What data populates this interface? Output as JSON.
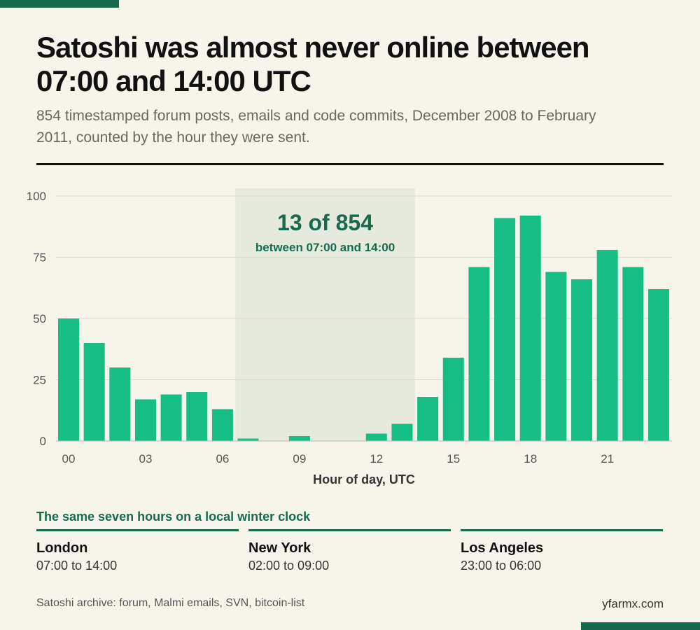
{
  "title": "Satoshi was almost never online between 07:00 and 14:00 UTC",
  "subtitle": "854 timestamped forum posts, emails and code commits, December 2008 to February 2011, counted by the hour they were sent.",
  "chart_data": {
    "type": "bar",
    "xlabel": "Hour of day, UTC",
    "ylabel": "",
    "ylim": [
      0,
      100
    ],
    "yticks": [
      0,
      25,
      50,
      75,
      100
    ],
    "categories": [
      "00",
      "01",
      "02",
      "03",
      "04",
      "05",
      "06",
      "07",
      "08",
      "09",
      "10",
      "11",
      "12",
      "13",
      "14",
      "15",
      "16",
      "17",
      "18",
      "19",
      "20",
      "21",
      "22",
      "23"
    ],
    "tick_labels": [
      "00",
      "03",
      "06",
      "09",
      "12",
      "15",
      "18",
      "21"
    ],
    "values": [
      50,
      40,
      30,
      17,
      19,
      20,
      13,
      1,
      0,
      2,
      0,
      0,
      3,
      7,
      18,
      34,
      71,
      91,
      92,
      69,
      66,
      78,
      71,
      62
    ],
    "grid": true,
    "bar_color": "#16bd84",
    "highlight": {
      "from_hour": 7,
      "to_hour": 14,
      "color": "#e6e9de",
      "count_label": "13 of 854",
      "range_label": "between 07:00 and 14:00"
    }
  },
  "cities": {
    "heading": "The same seven hours on a local winter clock",
    "items": [
      {
        "name": "London",
        "range": "07:00 to 14:00"
      },
      {
        "name": "New York",
        "range": "02:00 to 09:00"
      },
      {
        "name": "Los Angeles",
        "range": "23:00 to 06:00"
      }
    ]
  },
  "footer": {
    "source": "Satoshi archive: forum, Malmi emails, SVN, bitcoin-list",
    "credit": "yfarmx.com"
  },
  "colors": {
    "accent": "#176a4e",
    "bars": "#16bd84",
    "background": "#f7f4ec"
  }
}
